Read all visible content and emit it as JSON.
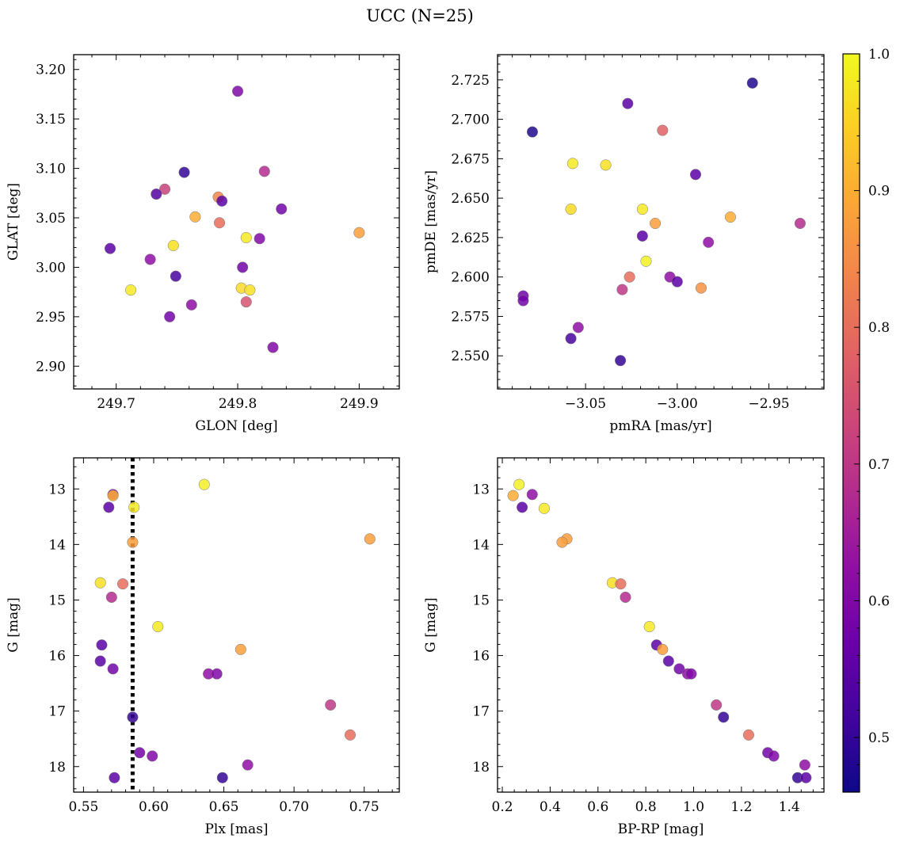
{
  "figure": {
    "title": "UCC (N=25)"
  },
  "colorbar": {
    "min": 0.46,
    "max": 1.0,
    "ticks": [
      0.5,
      0.6,
      0.7,
      0.8,
      0.9,
      1.0
    ],
    "tick_labels": [
      "0.5",
      "0.6",
      "0.7",
      "0.8",
      "0.9",
      "1.0"
    ],
    "colormap": "plasma"
  },
  "chart_data": [
    {
      "type": "scatter",
      "xlabel": "GLON [deg]",
      "ylabel": "GLAT [deg]",
      "xlim": [
        249.665,
        249.933
      ],
      "ylim": [
        2.877,
        3.215
      ],
      "xticks": [
        249.7,
        249.8,
        249.9
      ],
      "xtick_labels": [
        "249.7",
        "249.8",
        "249.9"
      ],
      "yticks": [
        2.9,
        2.95,
        3.0,
        3.05,
        3.1,
        3.15,
        3.2
      ],
      "ytick_labels": [
        "2.90",
        "2.95",
        "3.00",
        "3.05",
        "3.10",
        "3.15",
        "3.20"
      ],
      "y_inverted": false,
      "points": [
        {
          "x": 249.8,
          "y": 3.178,
          "c": 0.6
        },
        {
          "x": 249.756,
          "y": 3.096,
          "c": 0.5
        },
        {
          "x": 249.822,
          "y": 3.097,
          "c": 0.68
        },
        {
          "x": 249.74,
          "y": 3.079,
          "c": 0.72
        },
        {
          "x": 249.733,
          "y": 3.074,
          "c": 0.54
        },
        {
          "x": 249.784,
          "y": 3.071,
          "c": 0.84
        },
        {
          "x": 249.787,
          "y": 3.067,
          "c": 0.55
        },
        {
          "x": 249.836,
          "y": 3.059,
          "c": 0.58
        },
        {
          "x": 249.765,
          "y": 3.051,
          "c": 0.9
        },
        {
          "x": 249.785,
          "y": 3.045,
          "c": 0.8
        },
        {
          "x": 249.9,
          "y": 3.035,
          "c": 0.88
        },
        {
          "x": 249.807,
          "y": 3.03,
          "c": 0.98
        },
        {
          "x": 249.818,
          "y": 3.029,
          "c": 0.6
        },
        {
          "x": 249.747,
          "y": 3.022,
          "c": 0.97
        },
        {
          "x": 249.695,
          "y": 3.019,
          "c": 0.55
        },
        {
          "x": 249.728,
          "y": 3.008,
          "c": 0.62
        },
        {
          "x": 249.804,
          "y": 3.0,
          "c": 0.58
        },
        {
          "x": 249.749,
          "y": 2.991,
          "c": 0.52
        },
        {
          "x": 249.803,
          "y": 2.979,
          "c": 0.96
        },
        {
          "x": 249.712,
          "y": 2.977,
          "c": 0.98
        },
        {
          "x": 249.81,
          "y": 2.977,
          "c": 0.97
        },
        {
          "x": 249.807,
          "y": 2.965,
          "c": 0.75
        },
        {
          "x": 249.762,
          "y": 2.962,
          "c": 0.62
        },
        {
          "x": 249.744,
          "y": 2.95,
          "c": 0.58
        },
        {
          "x": 249.829,
          "y": 2.919,
          "c": 0.6
        }
      ]
    },
    {
      "type": "scatter",
      "xlabel": "pmRA [mas/yr]",
      "ylabel": "pmDE [mas/yr]",
      "xlim": [
        -3.098,
        -2.92
      ],
      "ylim": [
        2.529,
        2.741
      ],
      "xticks": [
        -3.05,
        -3.0,
        -2.95
      ],
      "xtick_labels": [
        "−3.05",
        "−3.00",
        "−2.95"
      ],
      "yticks": [
        2.55,
        2.575,
        2.6,
        2.625,
        2.65,
        2.675,
        2.7,
        2.725
      ],
      "ytick_labels": [
        "2.550",
        "2.575",
        "2.600",
        "2.625",
        "2.650",
        "2.675",
        "2.700",
        "2.725"
      ],
      "y_inverted": false,
      "points": [
        {
          "x": -2.959,
          "y": 2.723,
          "c": 0.48
        },
        {
          "x": -3.027,
          "y": 2.71,
          "c": 0.55
        },
        {
          "x": -3.008,
          "y": 2.693,
          "c": 0.78
        },
        {
          "x": -3.079,
          "y": 2.692,
          "c": 0.48
        },
        {
          "x": -3.057,
          "y": 2.672,
          "c": 0.98
        },
        {
          "x": -3.039,
          "y": 2.671,
          "c": 0.97
        },
        {
          "x": -2.99,
          "y": 2.665,
          "c": 0.55
        },
        {
          "x": -3.058,
          "y": 2.643,
          "c": 0.96
        },
        {
          "x": -3.019,
          "y": 2.643,
          "c": 0.98
        },
        {
          "x": -2.971,
          "y": 2.638,
          "c": 0.9
        },
        {
          "x": -2.933,
          "y": 2.634,
          "c": 0.68
        },
        {
          "x": -3.012,
          "y": 2.634,
          "c": 0.88
        },
        {
          "x": -3.019,
          "y": 2.626,
          "c": 0.55
        },
        {
          "x": -2.983,
          "y": 2.622,
          "c": 0.62
        },
        {
          "x": -3.017,
          "y": 2.61,
          "c": 0.99
        },
        {
          "x": -3.026,
          "y": 2.6,
          "c": 0.8
        },
        {
          "x": -3.004,
          "y": 2.6,
          "c": 0.62
        },
        {
          "x": -3.0,
          "y": 2.597,
          "c": 0.55
        },
        {
          "x": -2.987,
          "y": 2.593,
          "c": 0.86
        },
        {
          "x": -3.03,
          "y": 2.592,
          "c": 0.7
        },
        {
          "x": -3.084,
          "y": 2.588,
          "c": 0.58
        },
        {
          "x": -3.084,
          "y": 2.585,
          "c": 0.58
        },
        {
          "x": -3.054,
          "y": 2.568,
          "c": 0.62
        },
        {
          "x": -3.058,
          "y": 2.561,
          "c": 0.52
        },
        {
          "x": -3.031,
          "y": 2.547,
          "c": 0.5
        }
      ]
    },
    {
      "type": "scatter",
      "xlabel": "Plx [mas]",
      "ylabel": "G [mag]",
      "xlim": [
        0.543,
        0.775
      ],
      "ylim": [
        18.46,
        12.44
      ],
      "xticks": [
        0.55,
        0.6,
        0.65,
        0.7,
        0.75
      ],
      "xtick_labels": [
        "0.55",
        "0.60",
        "0.65",
        "0.70",
        "0.75"
      ],
      "yticks": [
        13,
        14,
        15,
        16,
        17,
        18
      ],
      "ytick_labels": [
        "13",
        "14",
        "15",
        "16",
        "17",
        "18"
      ],
      "y_inverted": true,
      "vline_x": 0.585,
      "points": [
        {
          "x": 0.636,
          "y": 12.92,
          "c": 0.99
        },
        {
          "x": 0.571,
          "y": 13.1,
          "c": 0.62
        },
        {
          "x": 0.571,
          "y": 13.12,
          "c": 0.9
        },
        {
          "x": 0.568,
          "y": 13.33,
          "c": 0.55
        },
        {
          "x": 0.586,
          "y": 13.33,
          "c": 0.98
        },
        {
          "x": 0.585,
          "y": 13.96,
          "c": 0.88
        },
        {
          "x": 0.754,
          "y": 13.9,
          "c": 0.88
        },
        {
          "x": 0.562,
          "y": 14.69,
          "c": 0.97
        },
        {
          "x": 0.578,
          "y": 14.71,
          "c": 0.8
        },
        {
          "x": 0.57,
          "y": 14.95,
          "c": 0.68
        },
        {
          "x": 0.603,
          "y": 15.48,
          "c": 0.98
        },
        {
          "x": 0.563,
          "y": 15.81,
          "c": 0.55
        },
        {
          "x": 0.662,
          "y": 15.89,
          "c": 0.88
        },
        {
          "x": 0.562,
          "y": 16.1,
          "c": 0.55
        },
        {
          "x": 0.571,
          "y": 16.24,
          "c": 0.58
        },
        {
          "x": 0.639,
          "y": 16.33,
          "c": 0.62
        },
        {
          "x": 0.645,
          "y": 16.33,
          "c": 0.6
        },
        {
          "x": 0.726,
          "y": 16.89,
          "c": 0.7
        },
        {
          "x": 0.585,
          "y": 17.11,
          "c": 0.5
        },
        {
          "x": 0.74,
          "y": 17.43,
          "c": 0.8
        },
        {
          "x": 0.59,
          "y": 17.75,
          "c": 0.58
        },
        {
          "x": 0.599,
          "y": 17.81,
          "c": 0.6
        },
        {
          "x": 0.667,
          "y": 17.97,
          "c": 0.62
        },
        {
          "x": 0.572,
          "y": 18.2,
          "c": 0.55
        },
        {
          "x": 0.649,
          "y": 18.2,
          "c": 0.5
        }
      ]
    },
    {
      "type": "scatter",
      "xlabel": "BP-RP [mag]",
      "ylabel": "G [mag]",
      "xlim": [
        0.18,
        1.545
      ],
      "ylim": [
        18.46,
        12.44
      ],
      "xticks": [
        0.2,
        0.4,
        0.6,
        0.8,
        1.0,
        1.2,
        1.4
      ],
      "xtick_labels": [
        "0.2",
        "0.4",
        "0.6",
        "0.8",
        "1.0",
        "1.2",
        "1.4"
      ],
      "yticks": [
        13,
        14,
        15,
        16,
        17,
        18
      ],
      "ytick_labels": [
        "13",
        "14",
        "15",
        "16",
        "17",
        "18"
      ],
      "y_inverted": true,
      "points": [
        {
          "x": 0.27,
          "y": 12.92,
          "c": 0.99
        },
        {
          "x": 0.245,
          "y": 13.12,
          "c": 0.9
        },
        {
          "x": 0.325,
          "y": 13.1,
          "c": 0.62
        },
        {
          "x": 0.283,
          "y": 13.33,
          "c": 0.55
        },
        {
          "x": 0.375,
          "y": 13.35,
          "c": 0.98
        },
        {
          "x": 0.47,
          "y": 13.9,
          "c": 0.88
        },
        {
          "x": 0.45,
          "y": 13.96,
          "c": 0.88
        },
        {
          "x": 0.66,
          "y": 14.69,
          "c": 0.97
        },
        {
          "x": 0.695,
          "y": 14.71,
          "c": 0.8
        },
        {
          "x": 0.715,
          "y": 14.95,
          "c": 0.68
        },
        {
          "x": 0.815,
          "y": 15.48,
          "c": 0.98
        },
        {
          "x": 0.845,
          "y": 15.81,
          "c": 0.55
        },
        {
          "x": 0.87,
          "y": 15.89,
          "c": 0.88
        },
        {
          "x": 0.895,
          "y": 16.1,
          "c": 0.55
        },
        {
          "x": 0.94,
          "y": 16.24,
          "c": 0.58
        },
        {
          "x": 0.975,
          "y": 16.33,
          "c": 0.62
        },
        {
          "x": 0.99,
          "y": 16.33,
          "c": 0.6
        },
        {
          "x": 1.095,
          "y": 16.89,
          "c": 0.7
        },
        {
          "x": 1.125,
          "y": 17.11,
          "c": 0.5
        },
        {
          "x": 1.23,
          "y": 17.43,
          "c": 0.8
        },
        {
          "x": 1.31,
          "y": 17.75,
          "c": 0.58
        },
        {
          "x": 1.335,
          "y": 17.81,
          "c": 0.6
        },
        {
          "x": 1.465,
          "y": 17.97,
          "c": 0.62
        },
        {
          "x": 1.435,
          "y": 18.2,
          "c": 0.5
        },
        {
          "x": 1.47,
          "y": 18.2,
          "c": 0.55
        }
      ]
    }
  ]
}
